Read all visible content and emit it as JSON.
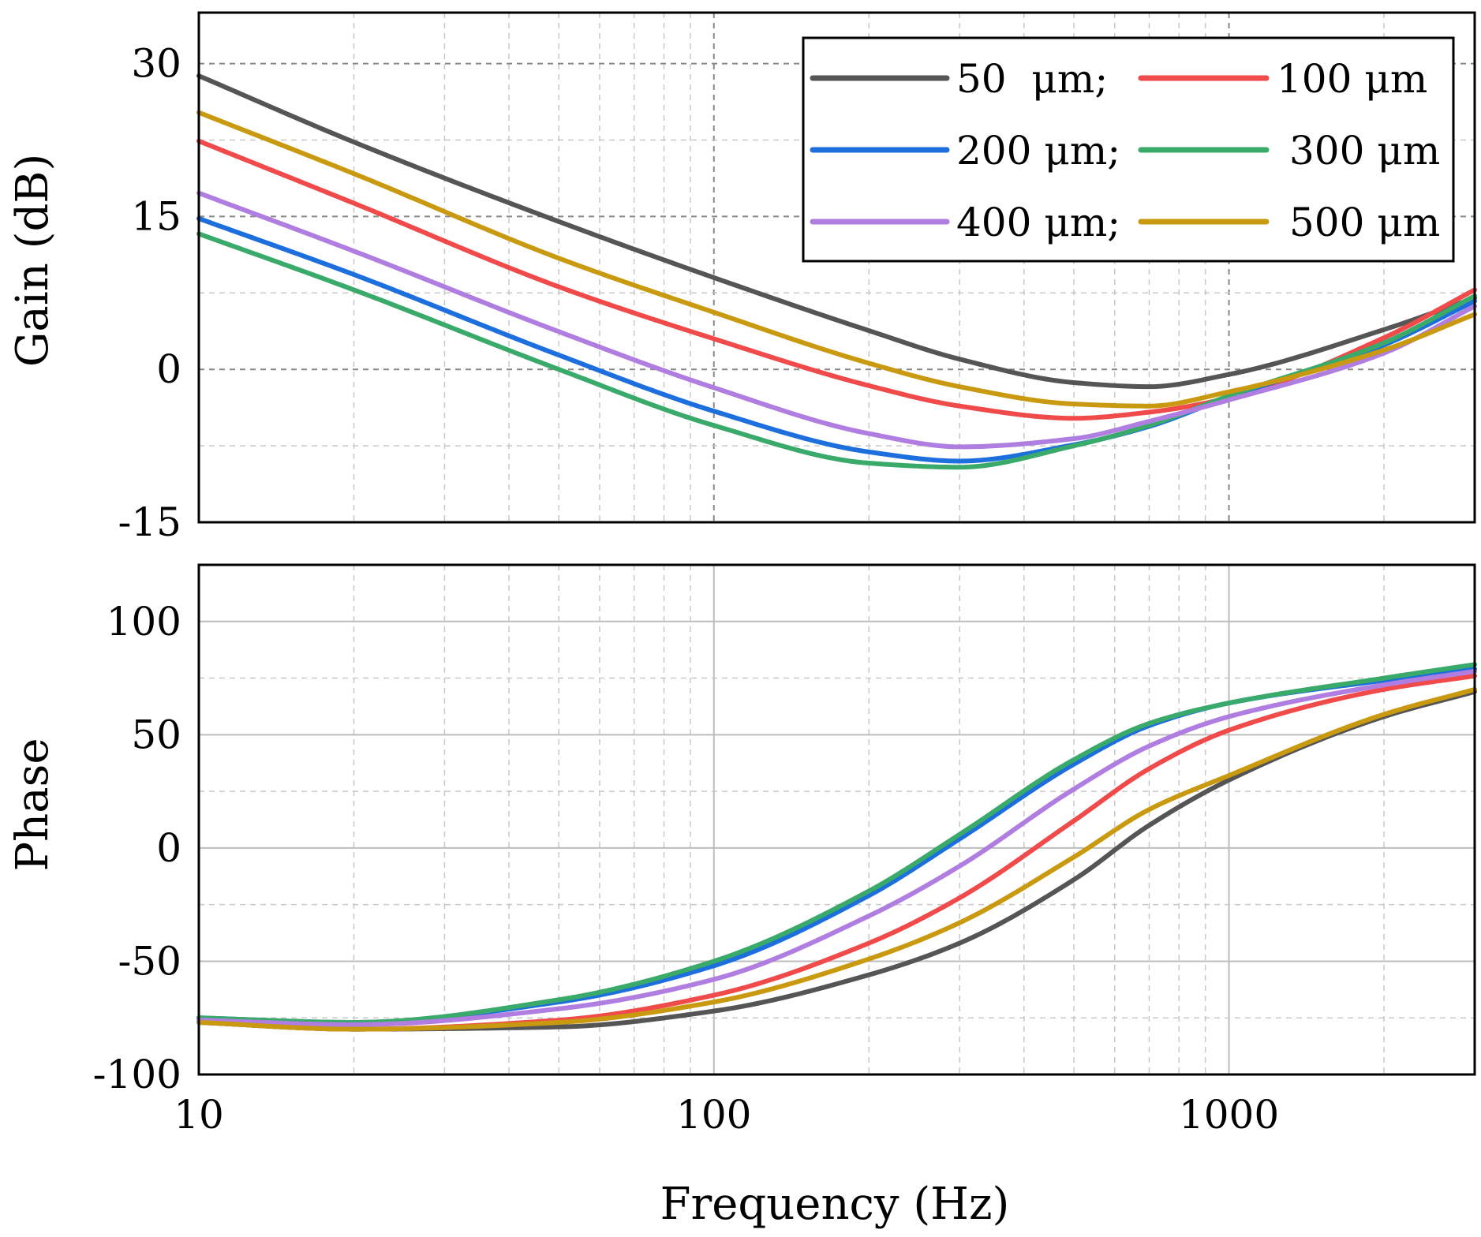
{
  "chart_data": [
    {
      "type": "line",
      "id": "gain",
      "title": "",
      "xlabel": "",
      "ylabel": "Gain (dB)",
      "xscale": "log",
      "xlim": [
        10,
        3000
      ],
      "ylim": [
        -15,
        35
      ],
      "yticks": [
        -15,
        0,
        15,
        30
      ],
      "ytick_labels": [
        "-15",
        "0",
        "15",
        "30"
      ],
      "grid": true,
      "legend": "top-right",
      "x": [
        10,
        20,
        50,
        100,
        200,
        300,
        500,
        700,
        1000,
        2000,
        3000
      ],
      "series": [
        {
          "name": "50  μm;",
          "color": "#555555",
          "values": [
            28.8,
            22.3,
            14.5,
            9.0,
            3.8,
            1.0,
            -1.3,
            -1.7,
            -0.5,
            3.9,
            7.0
          ]
        },
        {
          "name": "100 μm",
          "color": "#f04a4a",
          "values": [
            22.4,
            16.3,
            8.1,
            3.0,
            -1.6,
            -3.6,
            -4.8,
            -4.2,
            -2.8,
            3.1,
            7.8
          ]
        },
        {
          "name": "200 μm;",
          "color": "#1c6fdc",
          "values": [
            14.8,
            9.3,
            1.4,
            -4.1,
            -8.1,
            -9.0,
            -7.4,
            -5.6,
            -2.7,
            2.4,
            6.7
          ]
        },
        {
          "name": "300 μm",
          "color": "#3aaa6a",
          "values": [
            13.3,
            7.8,
            0.0,
            -5.5,
            -9.2,
            -9.6,
            -7.5,
            -5.5,
            -2.6,
            2.6,
            7.2
          ]
        },
        {
          "name": "400 μm;",
          "color": "#b07ee0",
          "values": [
            17.3,
            11.6,
            3.7,
            -1.8,
            -6.3,
            -7.6,
            -6.8,
            -5.1,
            -3.0,
            1.6,
            6.2
          ]
        },
        {
          "name": "500 μm",
          "color": "#c99a10",
          "values": [
            25.2,
            19.2,
            10.9,
            5.6,
            0.6,
            -1.7,
            -3.4,
            -3.6,
            -2.2,
            1.9,
            5.4
          ]
        }
      ]
    },
    {
      "type": "line",
      "id": "phase",
      "title": "",
      "xlabel": "Frequency (Hz)",
      "ylabel": "Phase",
      "xscale": "log",
      "xlim": [
        10,
        3000
      ],
      "ylim": [
        -100,
        125
      ],
      "yticks": [
        -100,
        -50,
        0,
        50,
        100
      ],
      "ytick_labels": [
        "-100",
        "-50",
        "0",
        "50",
        "100"
      ],
      "xticks": [
        10,
        100,
        1000
      ],
      "xtick_labels": [
        "10",
        "100",
        "1000"
      ],
      "grid": true,
      "x": [
        10,
        20,
        50,
        100,
        200,
        300,
        500,
        700,
        1000,
        2000,
        3000
      ],
      "series": [
        {
          "name": "50  μm;",
          "color": "#555555",
          "values": [
            -77,
            -80,
            -79,
            -72,
            -56,
            -42,
            -14,
            10,
            30,
            58,
            69
          ]
        },
        {
          "name": "100 μm",
          "color": "#f04a4a",
          "values": [
            -77,
            -80,
            -76,
            -65,
            -42,
            -22,
            12,
            35,
            52,
            70,
            76
          ]
        },
        {
          "name": "200 μm;",
          "color": "#1c6fdc",
          "values": [
            -75,
            -77,
            -68,
            -52,
            -21,
            4,
            37,
            54,
            64,
            74,
            79
          ]
        },
        {
          "name": "300 μm",
          "color": "#3aaa6a",
          "values": [
            -75,
            -77,
            -67,
            -50,
            -19,
            6,
            39,
            55,
            64,
            75,
            81
          ]
        },
        {
          "name": "400 μm;",
          "color": "#b07ee0",
          "values": [
            -76,
            -78,
            -71,
            -58,
            -30,
            -8,
            26,
            45,
            58,
            72,
            78
          ]
        },
        {
          "name": "500 μm",
          "color": "#c99a10",
          "values": [
            -77,
            -80,
            -77,
            -68,
            -49,
            -33,
            -4,
            17,
            32,
            59,
            70
          ]
        }
      ]
    }
  ]
}
